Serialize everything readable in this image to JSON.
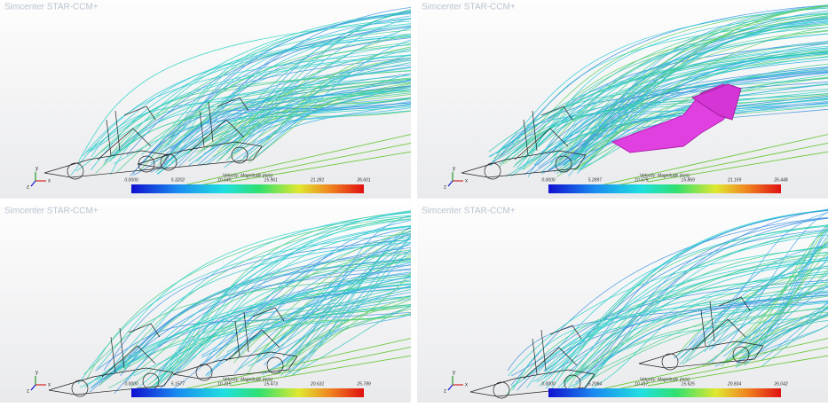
{
  "panels": [
    {
      "watermark": "Simcenter STAR-CCM+",
      "legend_title": "Velocity: Magnitude (m/s)",
      "ticks": [
        "0.0000",
        "5.3202",
        "10.640",
        "15.961",
        "21.281",
        "26.601"
      ],
      "axes": [
        "x",
        "y",
        "z"
      ]
    },
    {
      "watermark": "Simcenter STAR-CCM+",
      "legend_title": "Velocity: Magnitude (m/s)",
      "ticks": [
        "0.0000",
        "5.2897",
        "10.579",
        "15.869",
        "21.159",
        "26.448"
      ],
      "axes": [
        "x",
        "y",
        "z"
      ]
    },
    {
      "watermark": "Simcenter STAR-CCM+",
      "legend_title": "Velocity: Magnitude (m/s)",
      "ticks": [
        "0.0000",
        "5.1577",
        "10.315",
        "15.473",
        "20.631",
        "25.789"
      ],
      "axes": [
        "x",
        "y",
        "z"
      ]
    },
    {
      "watermark": "Simcenter STAR-CCM+",
      "legend_title": "Velocity: Magnitude (m/s)",
      "ticks": [
        "0.0000",
        "5.2084",
        "10.417",
        "15.625",
        "20.834",
        "26.042"
      ],
      "axes": [
        "x",
        "y",
        "z"
      ]
    }
  ]
}
